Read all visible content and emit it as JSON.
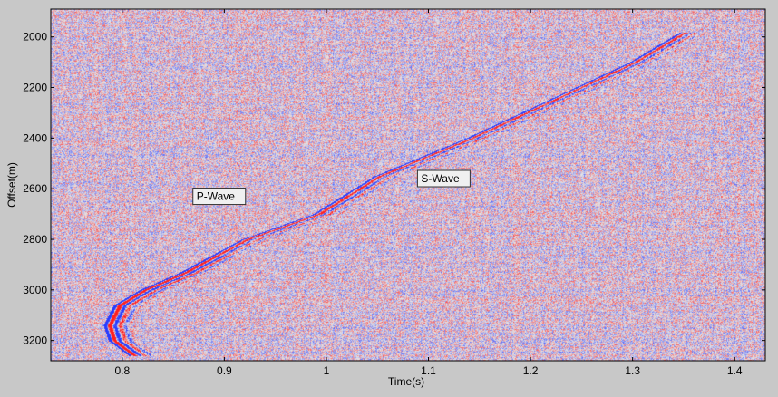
{
  "chart_data": {
    "type": "heatmap",
    "description_colormap": [
      "#2a3cff",
      "#e6e6e6",
      "#ff2a2a"
    ],
    "xlabel": "Time(s)",
    "ylabel": "Offset(m)",
    "xlim": [
      0.73,
      1.43
    ],
    "ylim": [
      1890,
      3280
    ],
    "x_ticks": [
      0.8,
      0.9,
      1,
      1.1,
      1.2,
      1.3,
      1.4
    ],
    "x_tick_labels": [
      "0.8",
      "0.9",
      "1",
      "1.1",
      "1.2",
      "1.3",
      "1.4"
    ],
    "y_ticks": [
      2000,
      2200,
      2400,
      2600,
      2800,
      3000,
      3200
    ],
    "y_tick_labels": [
      "2000",
      "2200",
      "2400",
      "2600",
      "2800",
      "3000",
      "3200"
    ],
    "p_wave_arrival": {
      "offset": [
        1980,
        2100,
        2250,
        2400,
        2550,
        2700,
        2800,
        2930,
        3000,
        3060,
        3140,
        3200,
        3260
      ],
      "time": [
        1.35,
        1.3,
        1.22,
        1.14,
        1.05,
        0.99,
        0.92,
        0.86,
        0.82,
        0.795,
        0.785,
        0.79,
        0.81
      ]
    },
    "annotations": [
      {
        "text": "P-Wave",
        "x": 0.895,
        "y": 2630
      },
      {
        "text": "S-Wave",
        "x": 1.115,
        "y": 2560
      }
    ]
  }
}
